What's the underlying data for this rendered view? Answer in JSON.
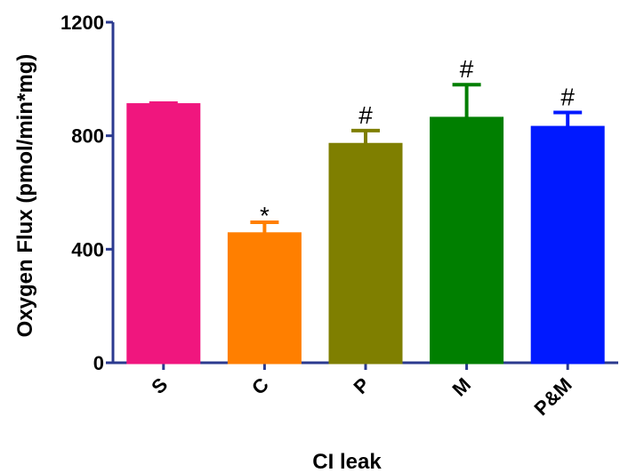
{
  "chart_data": {
    "type": "bar",
    "categories": [
      "S",
      "C",
      "P",
      "M",
      "P&M"
    ],
    "values": [
      910,
      455,
      770,
      862,
      830
    ],
    "error_bars": [
      5,
      40,
      48,
      118,
      52
    ],
    "annotations": [
      "",
      "*",
      "#",
      "#",
      "#"
    ],
    "colors": [
      "#f0167e",
      "#ff7f00",
      "#7f7f00",
      "#007f00",
      "#0019ff"
    ],
    "xlabel": "CI leak",
    "ylabel": "Oxygen Flux (pmol/min*mg)",
    "ylim": [
      0,
      1200
    ],
    "yticks": [
      0,
      400,
      800,
      1200
    ],
    "grid": false,
    "axis_color": "#2b3a8f"
  }
}
